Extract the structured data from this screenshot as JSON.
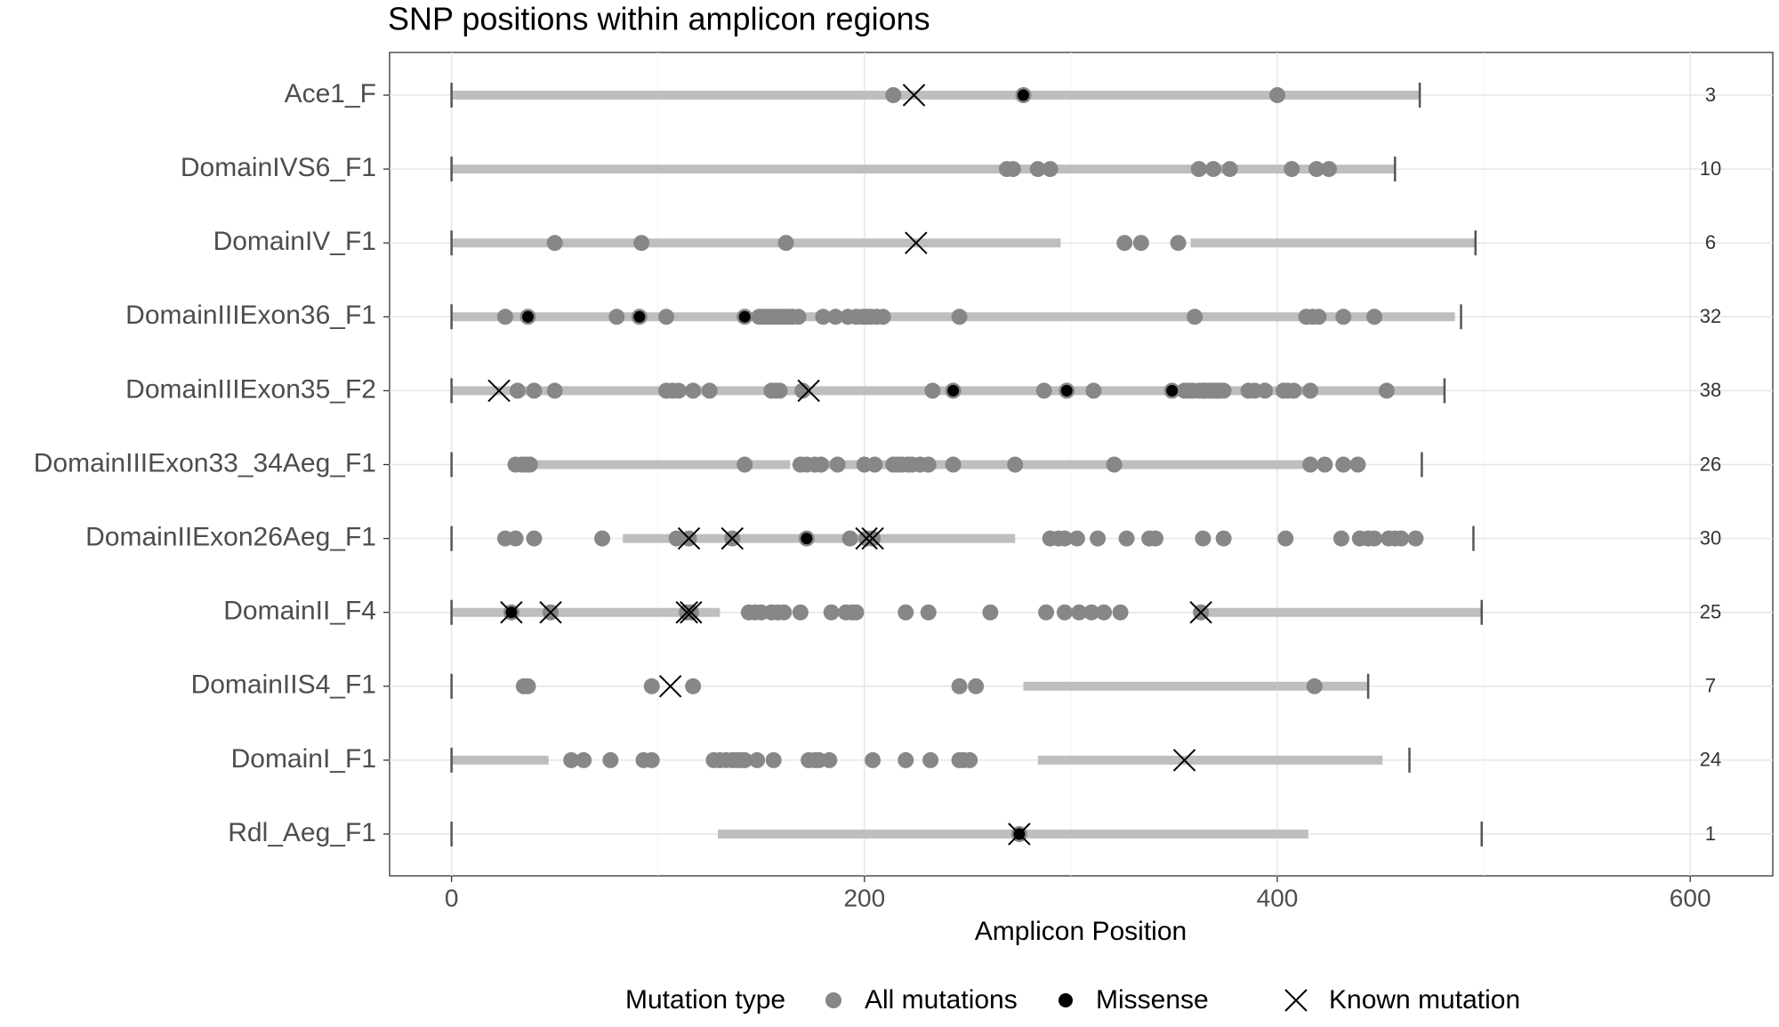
{
  "chart_data": {
    "type": "amplicon-strip",
    "title": "SNP positions within amplicon regions",
    "x_label": "Amplicon Position",
    "xlim": [
      -30,
      640
    ],
    "xticks": [
      0,
      200,
      400,
      600
    ],
    "xminor": [
      100,
      300,
      500
    ],
    "grid": true,
    "colors": {
      "covered": "#bebebe",
      "all": "#878787",
      "missense": "#000000",
      "known": "#000000",
      "range": "#555555"
    },
    "legend": {
      "title": "Mutation type",
      "position": "bottom",
      "items": [
        "All mutations",
        "Missense",
        "Known mutation"
      ]
    },
    "rows": [
      {
        "name": "Ace1_F",
        "range": [
          0,
          469
        ],
        "covered": [
          [
            0,
            469
          ]
        ],
        "all": [
          214,
          277,
          400
        ],
        "missense": [
          277
        ],
        "known": [
          224
        ],
        "count": 3
      },
      {
        "name": "DomainIVS6_F1",
        "range": [
          0,
          457
        ],
        "covered": [
          [
            0,
            457
          ]
        ],
        "all": [
          269,
          272,
          284,
          290,
          362,
          369,
          377,
          407,
          419,
          425
        ],
        "missense": [],
        "known": [],
        "count": 10
      },
      {
        "name": "DomainIV_F1",
        "range": [
          0,
          496
        ],
        "covered": [
          [
            0,
            295
          ],
          [
            358,
            496
          ]
        ],
        "all": [
          50,
          92,
          162,
          326,
          334,
          352
        ],
        "missense": [],
        "known": [
          225
        ],
        "count": 6
      },
      {
        "name": "DomainIIIExon36_F1",
        "range": [
          0,
          489
        ],
        "covered": [
          [
            0,
            486
          ]
        ],
        "all": [
          26,
          37,
          80,
          91,
          104,
          142,
          149,
          151,
          153,
          155,
          157,
          159,
          161,
          163,
          165,
          168,
          180,
          186,
          192,
          196,
          199,
          201,
          203,
          206,
          209,
          246,
          360,
          414,
          417,
          420,
          432,
          447
        ],
        "missense": [
          37,
          91,
          142
        ],
        "known": [],
        "count": 32
      },
      {
        "name": "DomainIIIExon35_F2",
        "range": [
          0,
          481
        ],
        "covered": [
          [
            0,
            481
          ]
        ],
        "all": [
          32,
          40,
          50,
          104,
          107,
          110,
          117,
          125,
          155,
          157,
          159,
          170,
          233,
          243,
          287,
          298,
          311,
          349,
          355,
          357,
          359,
          362,
          364,
          365,
          367,
          368,
          370,
          371,
          372,
          374,
          386,
          389,
          394,
          403,
          405,
          408,
          416,
          453
        ],
        "missense": [
          243,
          298,
          349
        ],
        "known": [
          23,
          173
        ],
        "count": 38
      },
      {
        "name": "DomainIIIExon33_34Aeg_F1",
        "range": [
          0,
          470
        ],
        "covered": [
          [
            35,
            164
          ],
          [
            167,
            414
          ]
        ],
        "all": [
          31,
          34,
          36,
          38,
          142,
          169,
          172,
          176,
          179,
          187,
          200,
          205,
          214,
          216,
          218,
          221,
          223,
          227,
          231,
          243,
          273,
          321,
          416,
          423,
          432,
          439
        ],
        "missense": [],
        "known": [],
        "count": 26
      },
      {
        "name": "DomainIIExon26Aeg_F1",
        "range": [
          0,
          495
        ],
        "covered": [
          [
            83,
            273
          ]
        ],
        "all": [
          26,
          31,
          40,
          73,
          109,
          115,
          136,
          172,
          193,
          201,
          204,
          290,
          294,
          297,
          303,
          313,
          327,
          338,
          341,
          364,
          374,
          404,
          431,
          440,
          444,
          447,
          454,
          457,
          460,
          467
        ],
        "missense": [
          172
        ],
        "known": [
          115,
          136,
          201,
          204
        ],
        "count": 30
      },
      {
        "name": "DomainII_F4",
        "range": [
          0,
          499
        ],
        "covered": [
          [
            0,
            130
          ],
          [
            364,
            499
          ]
        ],
        "all": [
          29,
          48,
          114,
          116,
          144,
          147,
          150,
          155,
          158,
          161,
          169,
          184,
          191,
          194,
          196,
          220,
          231,
          261,
          288,
          297,
          304,
          310,
          316,
          324,
          363
        ],
        "missense": [
          29
        ],
        "known": [
          29,
          48,
          114,
          116,
          363
        ],
        "count": 25
      },
      {
        "name": "DomainIIS4_F1",
        "range": [
          0,
          444
        ],
        "covered": [
          [
            277,
            444
          ]
        ],
        "all": [
          35,
          37,
          97,
          117,
          246,
          254,
          418
        ],
        "missense": [],
        "known": [
          106
        ],
        "count": 7
      },
      {
        "name": "DomainI_F1",
        "range": [
          0,
          464
        ],
        "covered": [
          [
            0,
            47
          ],
          [
            284,
            451
          ]
        ],
        "all": [
          58,
          64,
          77,
          93,
          97,
          127,
          130,
          133,
          136,
          138,
          140,
          142,
          148,
          156,
          173,
          176,
          178,
          183,
          204,
          220,
          232,
          246,
          248,
          251
        ],
        "missense": [],
        "known": [
          355
        ],
        "count": 24
      },
      {
        "name": "Rdl_Aeg_F1",
        "range": [
          0,
          499
        ],
        "covered": [
          [
            129,
            415
          ]
        ],
        "all": [
          275
        ],
        "missense": [
          275
        ],
        "known": [
          275
        ],
        "count": 1
      }
    ]
  }
}
